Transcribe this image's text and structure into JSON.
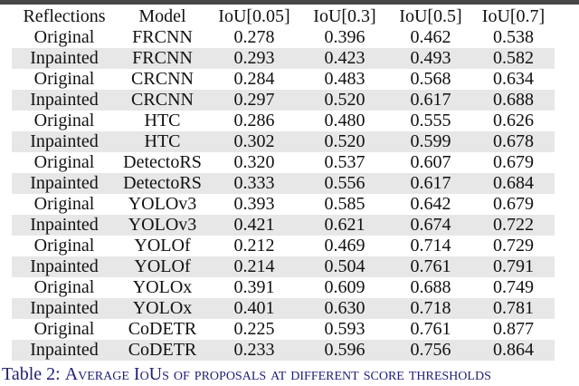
{
  "page": {
    "colors": {
      "page-bg": "#ffffff",
      "top-rule": "#474747",
      "stripe": "#e7e7e7",
      "text": "#111111",
      "caption": "#20207a"
    }
  },
  "table": {
    "columns": [
      "Reflections",
      "Model",
      "IoU[0.05]",
      "IoU[0.3]",
      "IoU[0.5]",
      "IoU[0.7]"
    ],
    "rows": [
      [
        "Original",
        "FRCNN",
        "0.278",
        "0.396",
        "0.462",
        "0.538"
      ],
      [
        "Inpainted",
        "FRCNN",
        "0.293",
        "0.423",
        "0.493",
        "0.582"
      ],
      [
        "Original",
        "CRCNN",
        "0.284",
        "0.483",
        "0.568",
        "0.634"
      ],
      [
        "Inpainted",
        "CRCNN",
        "0.297",
        "0.520",
        "0.617",
        "0.688"
      ],
      [
        "Original",
        "HTC",
        "0.286",
        "0.480",
        "0.555",
        "0.626"
      ],
      [
        "Inpainted",
        "HTC",
        "0.302",
        "0.520",
        "0.599",
        "0.678"
      ],
      [
        "Original",
        "DetectoRS",
        "0.320",
        "0.537",
        "0.607",
        "0.679"
      ],
      [
        "Inpainted",
        "DetectoRS",
        "0.333",
        "0.556",
        "0.617",
        "0.684"
      ],
      [
        "Original",
        "YOLOv3",
        "0.393",
        "0.585",
        "0.642",
        "0.679"
      ],
      [
        "Inpainted",
        "YOLOv3",
        "0.421",
        "0.621",
        "0.674",
        "0.722"
      ],
      [
        "Original",
        "YOLOf",
        "0.212",
        "0.469",
        "0.714",
        "0.729"
      ],
      [
        "Inpainted",
        "YOLOf",
        "0.214",
        "0.504",
        "0.761",
        "0.791"
      ],
      [
        "Original",
        "YOLOx",
        "0.391",
        "0.609",
        "0.688",
        "0.749"
      ],
      [
        "Inpainted",
        "YOLOx",
        "0.401",
        "0.630",
        "0.718",
        "0.781"
      ],
      [
        "Original",
        "CoDETR",
        "0.225",
        "0.593",
        "0.761",
        "0.877"
      ],
      [
        "Inpainted",
        "CoDETR",
        "0.233",
        "0.596",
        "0.756",
        "0.864"
      ]
    ]
  },
  "caption": {
    "label": "Table 2: ",
    "text_smallcaps": "Average IoUs of proposals at different score thresholds"
  }
}
